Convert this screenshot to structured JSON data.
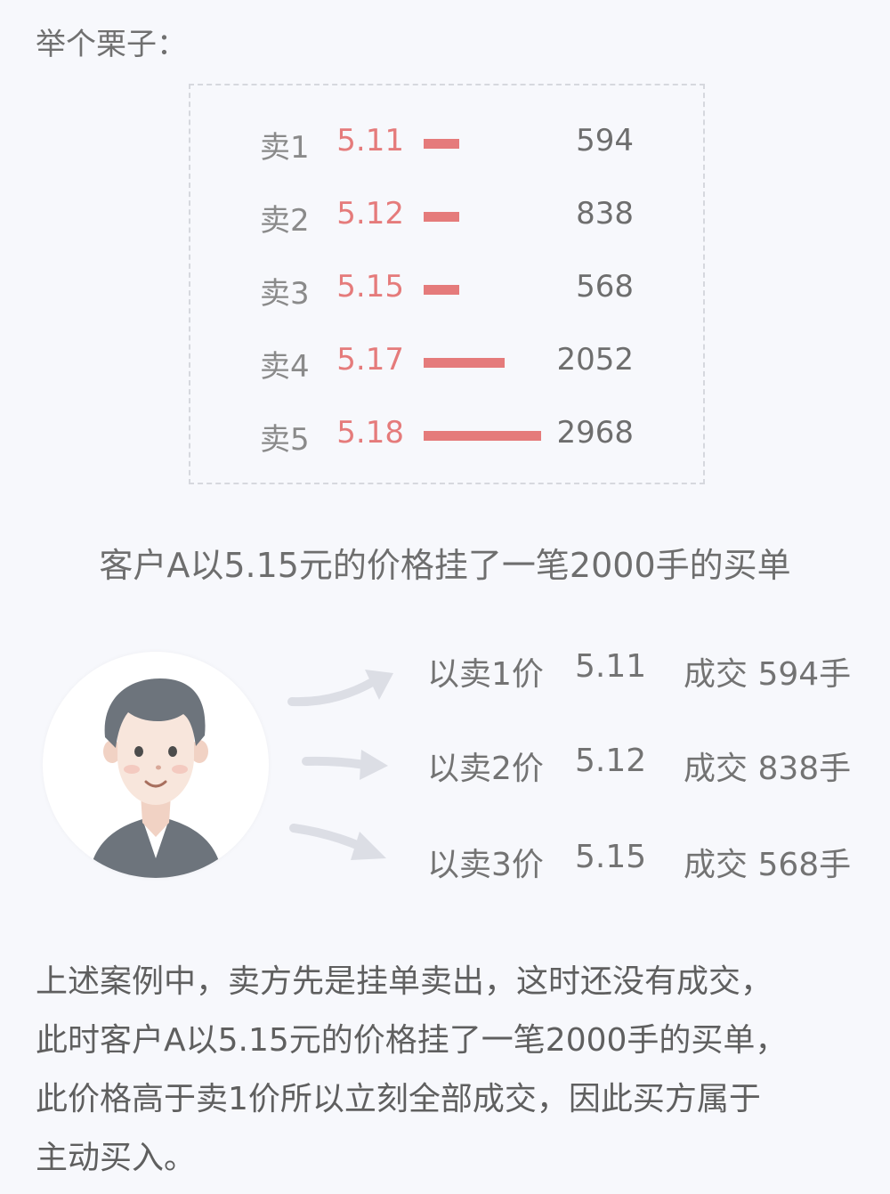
{
  "intro": "举个栗子：",
  "orderbook": {
    "rows": [
      {
        "label": "卖1",
        "price": "5.11",
        "volume": 594,
        "volume_text": "594"
      },
      {
        "label": "卖2",
        "price": "5.12",
        "volume": 838,
        "volume_text": "838"
      },
      {
        "label": "卖3",
        "price": "5.15",
        "volume": 568,
        "volume_text": "568"
      },
      {
        "label": "卖4",
        "price": "5.17",
        "volume": 2052,
        "volume_text": "2052"
      },
      {
        "label": "卖5",
        "price": "5.18",
        "volume": 2968,
        "volume_text": "2968"
      }
    ],
    "max_volume": 2968,
    "bar_color": "#e57b7b"
  },
  "caption": "客户A以5.15元的价格挂了一笔2000手的买单",
  "avatar": {
    "icon": "businessman-avatar-icon"
  },
  "trades": [
    {
      "label": "以卖1价",
      "price": "5.11",
      "deal": "成交 594手"
    },
    {
      "label": "以卖2价",
      "price": "5.12",
      "deal": "成交 838手"
    },
    {
      "label": "以卖3价",
      "price": "5.15",
      "deal": "成交 568手"
    }
  ],
  "summary": [
    "上述案例中，卖方先是挂单卖出，这时还没有成交，",
    "此时客户A以5.15元的价格挂了一笔2000手的买单，",
    "此价格高于卖1价所以立刻全部成交，因此买方属于",
    "主动买入。"
  ]
}
